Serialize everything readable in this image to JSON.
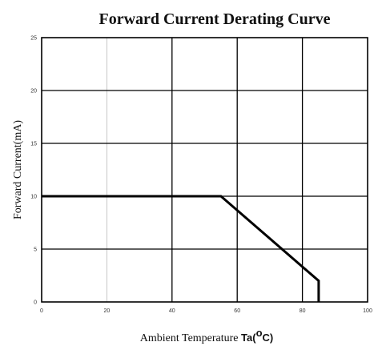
{
  "chart_data": {
    "type": "line",
    "title": "Forward Current Derating Curve",
    "xlabel_main": "Ambient Temperature ",
    "xlabel_symbol": "Ta(",
    "xlabel_superscript": "o",
    "xlabel_unit": "C)",
    "ylabel": "Forward Current(mA)",
    "xlim": [
      0,
      100
    ],
    "ylim": [
      0,
      25
    ],
    "x_ticks": [
      "0",
      "20",
      "40",
      "60",
      "80",
      "100"
    ],
    "y_ticks": [
      "0",
      "5",
      "10",
      "15",
      "20",
      "25"
    ],
    "grid": true,
    "series": [
      {
        "x": [
          0,
          55,
          85,
          85
        ],
        "y": [
          10,
          10,
          2,
          0
        ]
      }
    ],
    "colors": {
      "line": "#000000",
      "grid": "#000000",
      "grid_minor": "#bbbbbb",
      "frame": "#000000"
    }
  }
}
